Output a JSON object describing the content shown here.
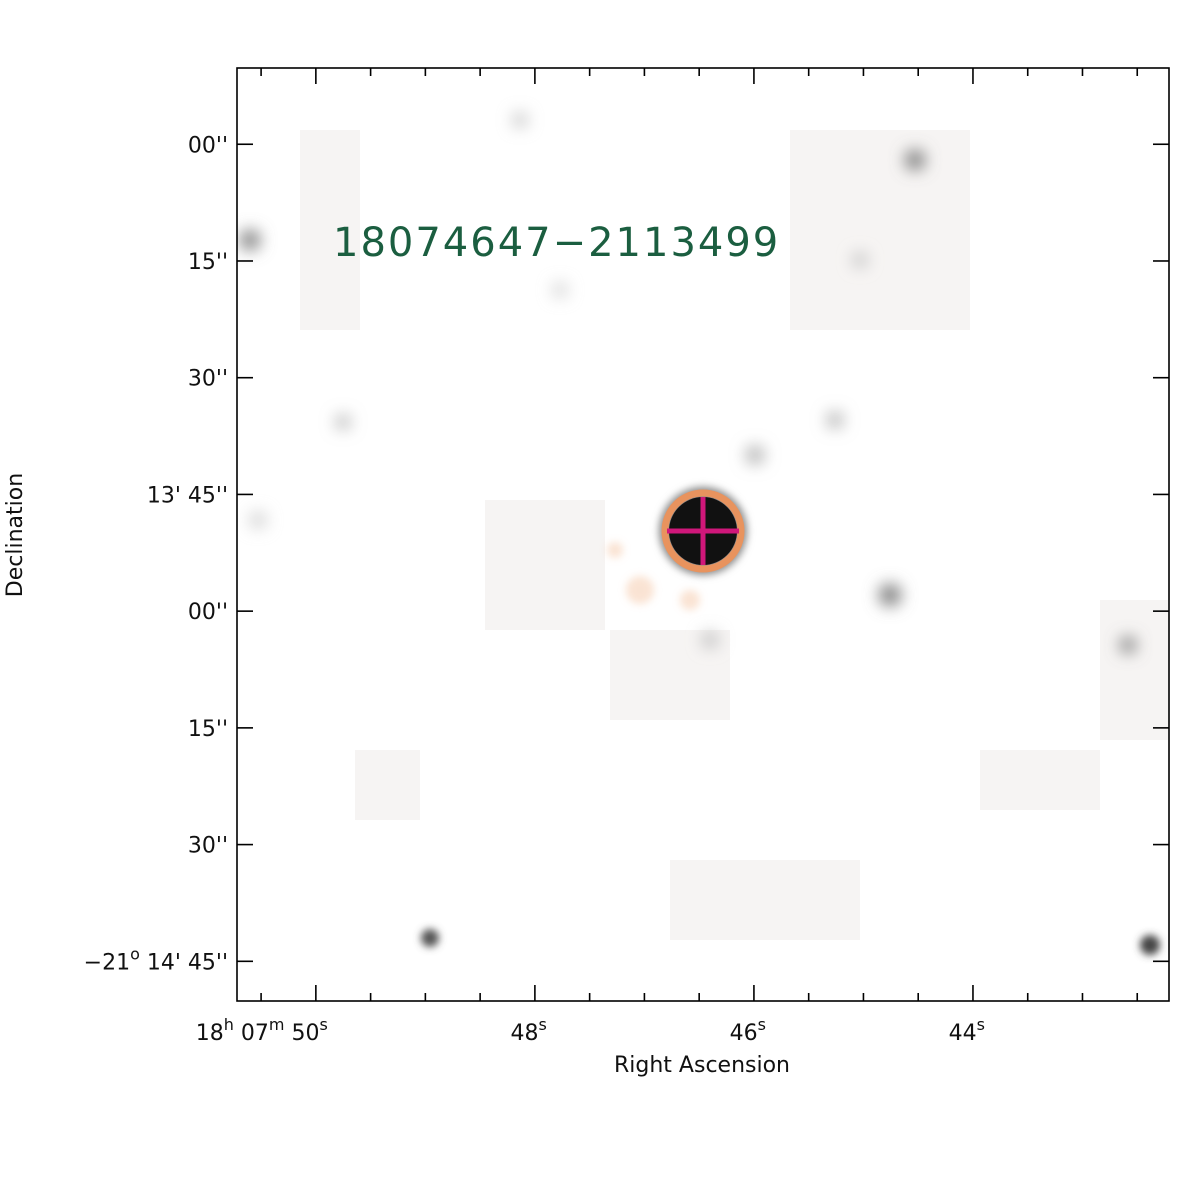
{
  "chart_data": {
    "type": "image",
    "title": "18074647−2113499",
    "xlabel": "Right Ascension",
    "ylabel": "Declination",
    "xlim": [
      50.72,
      42.21
    ],
    "ylim": [
      -890.1,
      -770.2
    ],
    "xticks": [
      {
        "value": 50,
        "label": [
          "18",
          "h",
          " 07",
          "m",
          " 50",
          "s"
        ]
      },
      {
        "value": 48,
        "label": [
          "48",
          "s"
        ]
      },
      {
        "value": 46,
        "label": [
          "46",
          "s"
        ]
      },
      {
        "value": 44,
        "label": [
          "44",
          "s"
        ]
      }
    ],
    "xminorticks": [
      50.5,
      49.5,
      49,
      48.5,
      47.5,
      47,
      46.5,
      45.5,
      45,
      44.5,
      43.5,
      43,
      42.5
    ],
    "yticks": [
      {
        "value": -780,
        "label": [
          "00''"
        ]
      },
      {
        "value": -795,
        "label": [
          "15''"
        ]
      },
      {
        "value": -810,
        "label": [
          "30''"
        ]
      },
      {
        "value": -825,
        "label": [
          "13' 45''"
        ]
      },
      {
        "value": -840,
        "label": [
          "00''"
        ]
      },
      {
        "value": -855,
        "label": [
          "15''"
        ]
      },
      {
        "value": -870,
        "label": [
          "30''"
        ]
      },
      {
        "value": -885,
        "label": [
          "−21",
          "o",
          " 14' 45''"
        ]
      }
    ]
  }
}
